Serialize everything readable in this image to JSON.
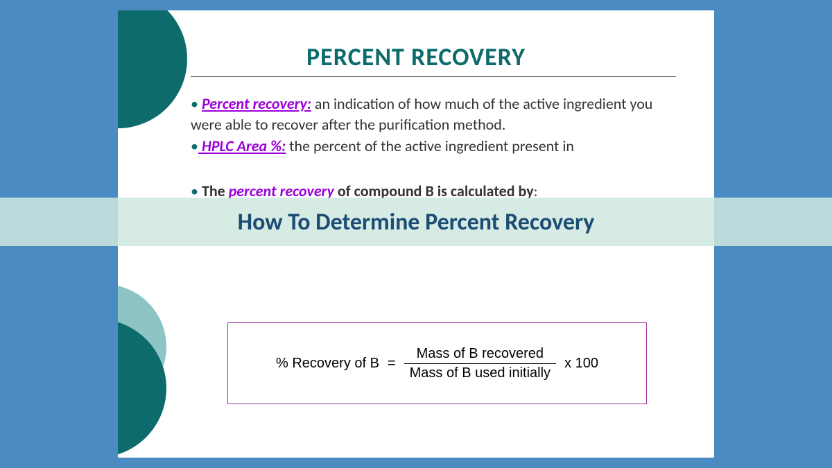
{
  "background_color": "#4a8bc2",
  "slide": {
    "background_color": "#ffffff",
    "title": {
      "text": "PERCENT RECOVERY",
      "color": "#0d6b6b",
      "fontsize": 36
    },
    "circles": {
      "dark_color": "#0d6b6b",
      "light_color": "#8fc4c4"
    },
    "bullets": {
      "bullet_color": "#0d6b6b",
      "term_color": "#9b00d9",
      "item1": {
        "term": "Percent recovery:",
        "text": " an indication of how much of the active ingredient you were able to  recover after the purification method."
      },
      "item2": {
        "term": " HPLC Area %:",
        "text": "  the percent of the active ingredient present in"
      },
      "item3": {
        "prefix": "The ",
        "term": "percent recovery",
        "suffix": " of compound B is calculated by",
        "colon": ":"
      }
    },
    "formula": {
      "border_color": "#a030a0",
      "lhs": "% Recovery of B",
      "equals": "=",
      "numerator": "Mass of B recovered",
      "denominator": "Mass of B used initially",
      "multiply": "x 100"
    }
  },
  "overlay": {
    "background_color": "rgba(206, 232, 223, 0.85)",
    "text": "How To Determine Percent Recovery",
    "text_color": "#1d4c73",
    "fontsize": 34
  }
}
